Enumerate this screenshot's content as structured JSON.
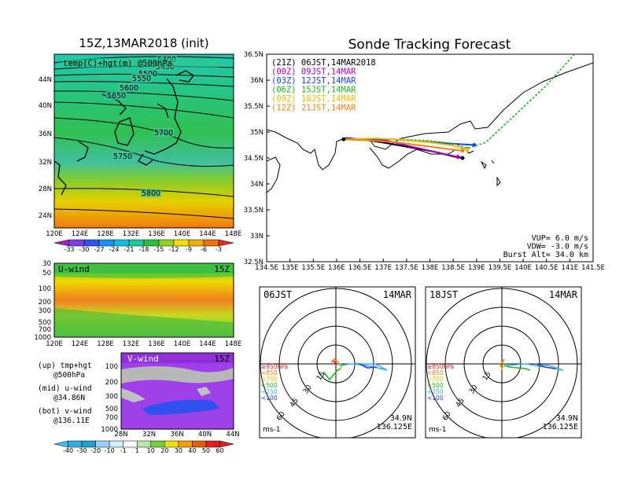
{
  "left_title": "15Z,13MAR2018 (init)",
  "main_title": "Sonde Tracking Forecast",
  "map_panel": {
    "label": "temp(C)+hgt(m) @500hPa",
    "lat_labels": [
      "44N",
      "40N",
      "36N",
      "32N",
      "28N",
      "24N"
    ],
    "lon_labels": [
      "120E",
      "124E",
      "128E",
      "132E",
      "136E",
      "140E",
      "144E",
      "148E"
    ],
    "contour_labels": [
      "5400",
      "5450",
      "5500",
      "5550",
      "5600",
      "5650",
      "5700",
      "5750",
      "5800"
    ],
    "colorbar_labels": [
      "-33",
      "-30",
      "-27",
      "-24",
      "-21",
      "-18",
      "-15",
      "-12",
      "-9",
      "-6",
      "-3"
    ],
    "colorbar_colors": [
      "#a020c0",
      "#8040e0",
      "#3050f0",
      "#1890f0",
      "#10c0e0",
      "#20c8a0",
      "#30c040",
      "#90d020",
      "#f0e000",
      "#f0b000",
      "#f07010",
      "#e03020"
    ]
  },
  "u_panel": {
    "title": "U-wind",
    "time": "15Z",
    "y_labels": [
      "30",
      "50",
      "100",
      "200",
      "300",
      "500",
      "700",
      "1000"
    ],
    "x_labels": [
      "120E",
      "124E",
      "128E",
      "132E",
      "136E",
      "140E",
      "144E",
      "148E"
    ]
  },
  "v_panel": {
    "title": "V-wind",
    "time": "15Z",
    "y_labels": [
      "100",
      "200",
      "300",
      "500",
      "700",
      "1000"
    ],
    "x_labels": [
      "28N",
      "32N",
      "36N",
      "40N",
      "44N"
    ]
  },
  "notes": [
    {
      "a": "(up) tmp+hgt",
      "b": "@500hPa"
    },
    {
      "a": "(mid) u-wind",
      "b": "@34.86N"
    },
    {
      "a": "(bot) v-wind",
      "b": "@136.11E"
    }
  ],
  "wind_colorbar_labels": [
    "-40",
    "-30",
    "-20",
    "-10",
    "-1",
    "1",
    "10",
    "20",
    "30",
    "40",
    "50",
    "60"
  ],
  "wind_colorbar_colors": [
    "#40c0f0",
    "#30b0e0",
    "#20a0d0",
    "#9ad0ff",
    "#d0f0ff",
    "#f8f8f8",
    "#b8e8a0",
    "#70d040",
    "#f0e000",
    "#f0a000",
    "#e06000",
    "#e02020"
  ],
  "track_panel": {
    "x_labels": [
      "134.5E",
      "135E",
      "135.5E",
      "136E",
      "136.5E",
      "137E",
      "137.5E",
      "138E",
      "138.5E",
      "139E",
      "139.5E",
      "140E",
      "140.5E",
      "141E",
      "141.5E"
    ],
    "y_labels": [
      "36.5N",
      "36N",
      "35.5N",
      "35N",
      "34.5N",
      "34N",
      "33.5N",
      "33N",
      "32.5N"
    ],
    "legend": [
      {
        "text": "(21Z)  06JST,14MAR2018",
        "color": "#000000"
      },
      {
        "text": "(00Z)  09JST,14MAR",
        "color": "#a000c0"
      },
      {
        "text": "(03Z)  12JST,14MAR",
        "color": "#2040f0"
      },
      {
        "text": "(06Z)  15JST,14MAR",
        "color": "#20b020"
      },
      {
        "text": "(09Z)  18JST,14MAR",
        "color": "#e8c000"
      },
      {
        "text": "(12Z)  21JST,14MAR",
        "color": "#f08020"
      }
    ],
    "params": [
      "VUP=  6.0 m/s",
      "VDW= -3.0 m/s",
      "Burst Alt= 34.0 km"
    ]
  },
  "polar_left": {
    "time": "06JST",
    "date": "14MAR",
    "ring_labels": [
      "15",
      "30",
      "45",
      "60"
    ],
    "levels": [
      "≥850hPa",
      "<850",
      "<700",
      "<500",
      "<250",
      "<100"
    ],
    "unit": "ms-1",
    "lat": "34.9N",
    "lon": "136.125E"
  },
  "polar_right": {
    "time": "18JST",
    "date": "14MAR",
    "ring_labels": [
      "15",
      "30",
      "45",
      "60"
    ],
    "levels": [
      "≥850hPa",
      "<850",
      "<700",
      "<500",
      "<250",
      "<100"
    ],
    "unit": "ms-1",
    "lat": "34.9N",
    "lon": "136.125E"
  },
  "level_colors": [
    "#e02020",
    "#f08020",
    "#e8c000",
    "#20b020",
    "#40b0f0",
    "#2040f0"
  ],
  "chart_data": {
    "type": "line",
    "title": "Sonde Tracking Forecast",
    "xlim": [
      134.5,
      141.5
    ],
    "ylim": [
      32.5,
      36.5
    ],
    "series": [
      {
        "name": "(21Z) 06JST,14MAR2018",
        "x": [
          136.15,
          136.6,
          137.05,
          137.6,
          138.1,
          138.5,
          138.7
        ],
        "y": [
          34.86,
          34.85,
          34.79,
          34.7,
          34.62,
          34.53,
          34.5
        ]
      },
      {
        "name": "(00Z) 09JST,14MAR",
        "x": [
          136.15,
          136.6,
          137.05,
          137.6,
          138.1,
          138.6
        ],
        "y": [
          34.86,
          34.86,
          34.84,
          34.72,
          34.62,
          34.52
        ]
      },
      {
        "name": "(03Z) 12JST,14MAR",
        "x": [
          136.15,
          136.7,
          137.2,
          137.8,
          138.4,
          138.95
        ],
        "y": [
          34.86,
          34.87,
          34.86,
          34.82,
          34.78,
          34.75
        ]
      },
      {
        "name": "(06Z) 15JST,14MAR",
        "x": [
          136.15,
          136.8,
          137.4,
          138.0,
          138.5,
          138.8,
          139.2,
          140.5,
          141.5
        ],
        "y": [
          34.86,
          34.87,
          34.86,
          34.83,
          34.78,
          34.68,
          34.8,
          35.9,
          36.9
        ]
      },
      {
        "name": "(09Z) 18JST,14MAR",
        "x": [
          136.15,
          136.8,
          137.4,
          138.0,
          138.5,
          138.8
        ],
        "y": [
          34.86,
          34.88,
          34.85,
          34.8,
          34.74,
          34.66
        ]
      },
      {
        "name": "(12Z) 21JST,14MAR",
        "x": [
          136.15,
          136.7,
          137.3,
          137.9,
          138.4,
          138.7
        ],
        "y": [
          34.86,
          34.84,
          34.8,
          34.73,
          34.67,
          34.64
        ]
      }
    ]
  }
}
